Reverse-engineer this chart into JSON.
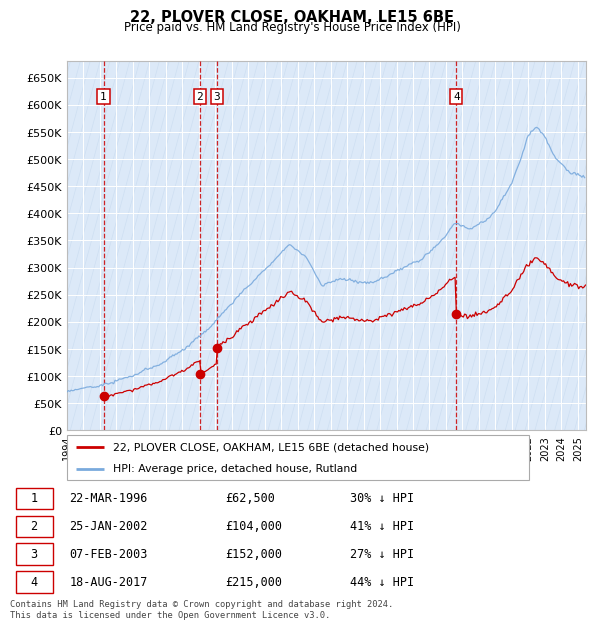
{
  "title": "22, PLOVER CLOSE, OAKHAM, LE15 6BE",
  "subtitle": "Price paid vs. HM Land Registry's House Price Index (HPI)",
  "ylim": [
    0,
    680000
  ],
  "yticks": [
    0,
    50000,
    100000,
    150000,
    200000,
    250000,
    300000,
    350000,
    400000,
    450000,
    500000,
    550000,
    600000,
    650000
  ],
  "ytick_labels": [
    "£0",
    "£50K",
    "£100K",
    "£150K",
    "£200K",
    "£250K",
    "£300K",
    "£350K",
    "£400K",
    "£450K",
    "£500K",
    "£550K",
    "£600K",
    "£650K"
  ],
  "xlim_start": 1994.0,
  "xlim_end": 2025.5,
  "plot_bg_color": "#dce9f8",
  "grid_color": "#ffffff",
  "sale_dates": [
    1996.22,
    2002.07,
    2003.1,
    2017.63
  ],
  "sale_prices": [
    62500,
    104000,
    152000,
    215000
  ],
  "sale_labels": [
    "1",
    "2",
    "3",
    "4"
  ],
  "sale_line_color": "#cc0000",
  "hpi_line_color": "#7aaadd",
  "legend_label_red": "22, PLOVER CLOSE, OAKHAM, LE15 6BE (detached house)",
  "legend_label_blue": "HPI: Average price, detached house, Rutland",
  "table_rows": [
    [
      "1",
      "22-MAR-1996",
      "£62,500",
      "30% ↓ HPI"
    ],
    [
      "2",
      "25-JAN-2002",
      "£104,000",
      "41% ↓ HPI"
    ],
    [
      "3",
      "07-FEB-2003",
      "£152,000",
      "27% ↓ HPI"
    ],
    [
      "4",
      "18-AUG-2017",
      "£215,000",
      "44% ↓ HPI"
    ]
  ],
  "footer_text": "Contains HM Land Registry data © Crown copyright and database right 2024.\nThis data is licensed under the Open Government Licence v3.0."
}
